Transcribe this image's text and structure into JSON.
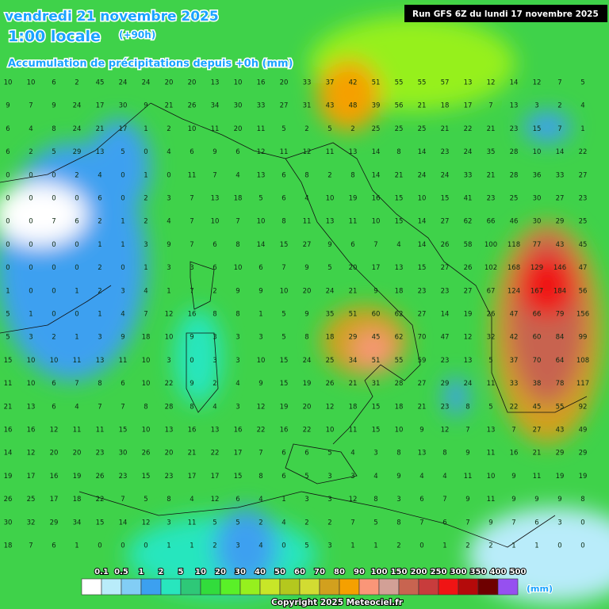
{
  "header": {
    "date": "vendredi 21 novembre 2025",
    "time": "1:00 locale",
    "lead": "(+90h)",
    "subtitle": "Accumulation de précipitations depuis +0h (mm)",
    "run": "Run GFS 6Z du lundi 17 novembre 2025"
  },
  "map": {
    "grid": [
      [
        10,
        10,
        6,
        2,
        45,
        24,
        24,
        20,
        20,
        13,
        10,
        16,
        20,
        33,
        37,
        42,
        51,
        55,
        55,
        57,
        13,
        12,
        14,
        12,
        7,
        5
      ],
      [
        9,
        7,
        9,
        24,
        17,
        30,
        9,
        21,
        26,
        34,
        30,
        33,
        27,
        31,
        43,
        48,
        39,
        56,
        21,
        18,
        17,
        7,
        13,
        3,
        2,
        4
      ],
      [
        6,
        4,
        8,
        24,
        21,
        17,
        1,
        2,
        10,
        11,
        20,
        11,
        5,
        2,
        5,
        2,
        25,
        25,
        25,
        21,
        22,
        21,
        23,
        15,
        7,
        1
      ],
      [
        6,
        2,
        5,
        29,
        13,
        5,
        0,
        4,
        6,
        9,
        6,
        12,
        11,
        12,
        11,
        13,
        14,
        8,
        14,
        23,
        24,
        35,
        28,
        10,
        14,
        22
      ],
      [
        0,
        0,
        0,
        2,
        4,
        0,
        1,
        0,
        11,
        7,
        4,
        13,
        6,
        8,
        2,
        8,
        14,
        21,
        24,
        24,
        33,
        21,
        28,
        36,
        33,
        27
      ],
      [
        0,
        0,
        0,
        0,
        6,
        0,
        2,
        3,
        7,
        13,
        18,
        5,
        6,
        4,
        10,
        19,
        16,
        15,
        10,
        15,
        41,
        23,
        25,
        30,
        27,
        23
      ],
      [
        0,
        0,
        7,
        6,
        2,
        1,
        2,
        4,
        7,
        10,
        7,
        10,
        8,
        11,
        13,
        11,
        10,
        15,
        14,
        27,
        62,
        66,
        46,
        30,
        29,
        25
      ],
      [
        0,
        0,
        0,
        0,
        1,
        1,
        3,
        9,
        7,
        6,
        8,
        14,
        15,
        27,
        9,
        6,
        7,
        4,
        14,
        26,
        58,
        100,
        118,
        77,
        43,
        45
      ],
      [
        0,
        0,
        0,
        0,
        2,
        0,
        1,
        3,
        3,
        6,
        10,
        6,
        7,
        9,
        5,
        20,
        17,
        13,
        15,
        27,
        26,
        102,
        168,
        129,
        146,
        47
      ],
      [
        1,
        0,
        0,
        1,
        2,
        3,
        4,
        1,
        7,
        2,
        9,
        9,
        10,
        20,
        24,
        21,
        9,
        18,
        23,
        23,
        27,
        67,
        124,
        167,
        184,
        56
      ],
      [
        5,
        1,
        0,
        0,
        1,
        4,
        7,
        12,
        16,
        8,
        8,
        1,
        5,
        9,
        35,
        51,
        60,
        62,
        27,
        14,
        19,
        26,
        47,
        66,
        79,
        156
      ],
      [
        5,
        3,
        2,
        1,
        3,
        9,
        18,
        10,
        9,
        3,
        3,
        3,
        5,
        8,
        18,
        29,
        45,
        62,
        70,
        47,
        12,
        32,
        42,
        60,
        84,
        99
      ],
      [
        15,
        10,
        10,
        11,
        13,
        11,
        10,
        3,
        0,
        3,
        3,
        10,
        15,
        24,
        25,
        34,
        51,
        55,
        59,
        23,
        13,
        5,
        37,
        70,
        64,
        108
      ],
      [
        11,
        10,
        6,
        7,
        8,
        6,
        10,
        22,
        9,
        2,
        4,
        9,
        15,
        19,
        26,
        21,
        31,
        28,
        27,
        29,
        24,
        11,
        33,
        38,
        78,
        117
      ],
      [
        21,
        13,
        6,
        4,
        7,
        7,
        8,
        28,
        8,
        4,
        3,
        12,
        19,
        20,
        12,
        18,
        15,
        18,
        21,
        23,
        8,
        5,
        22,
        45,
        55,
        92
      ],
      [
        16,
        16,
        12,
        11,
        11,
        15,
        10,
        13,
        16,
        13,
        16,
        22,
        16,
        22,
        10,
        11,
        15,
        10,
        9,
        12,
        7,
        13,
        7,
        27,
        43,
        49
      ],
      [
        14,
        12,
        20,
        20,
        23,
        30,
        26,
        20,
        21,
        22,
        17,
        7,
        6,
        6,
        5,
        4,
        3,
        8,
        13,
        8,
        9,
        11,
        16,
        21,
        29,
        29
      ],
      [
        19,
        17,
        16,
        19,
        26,
        23,
        15,
        23,
        17,
        17,
        15,
        8,
        6,
        5,
        3,
        3,
        4,
        9,
        4,
        4,
        11,
        10,
        9,
        11,
        19,
        19
      ],
      [
        26,
        25,
        17,
        18,
        22,
        7,
        5,
        8,
        4,
        12,
        6,
        4,
        1,
        3,
        3,
        12,
        8,
        3,
        6,
        7,
        9,
        11,
        9,
        9,
        9,
        8
      ],
      [
        30,
        32,
        29,
        34,
        15,
        14,
        12,
        3,
        11,
        5,
        5,
        2,
        4,
        2,
        2,
        7,
        5,
        8,
        7,
        6,
        7,
        9,
        7,
        6,
        3,
        0
      ],
      [
        18,
        7,
        6,
        1,
        0,
        0,
        0,
        1,
        1,
        2,
        3,
        4,
        0,
        5,
        3,
        1,
        1,
        2,
        0,
        1,
        2,
        2,
        1,
        1,
        0,
        0
      ]
    ]
  },
  "legend": {
    "ticks": [
      0.1,
      0.5,
      1,
      2,
      5,
      10,
      20,
      30,
      40,
      50,
      60,
      70,
      80,
      90,
      100,
      150,
      200,
      250,
      300,
      350,
      400,
      500
    ],
    "colors": [
      "#ffffff",
      "#b9ecfa",
      "#82cdf5",
      "#3ca0f0",
      "#28e6be",
      "#2ec878",
      "#32dc3c",
      "#5af028",
      "#96f01e",
      "#c8e628",
      "#b4c81e",
      "#d2dc32",
      "#d2a01e",
      "#f5a000",
      "#fa9678",
      "#d2a096",
      "#c86450",
      "#c83c3c",
      "#f01414",
      "#b40a0a",
      "#6e0000",
      "#9650f0"
    ],
    "unit": "(mm)"
  },
  "footer": {
    "copyright": "Copyright 2025 Meteociel.fr"
  }
}
